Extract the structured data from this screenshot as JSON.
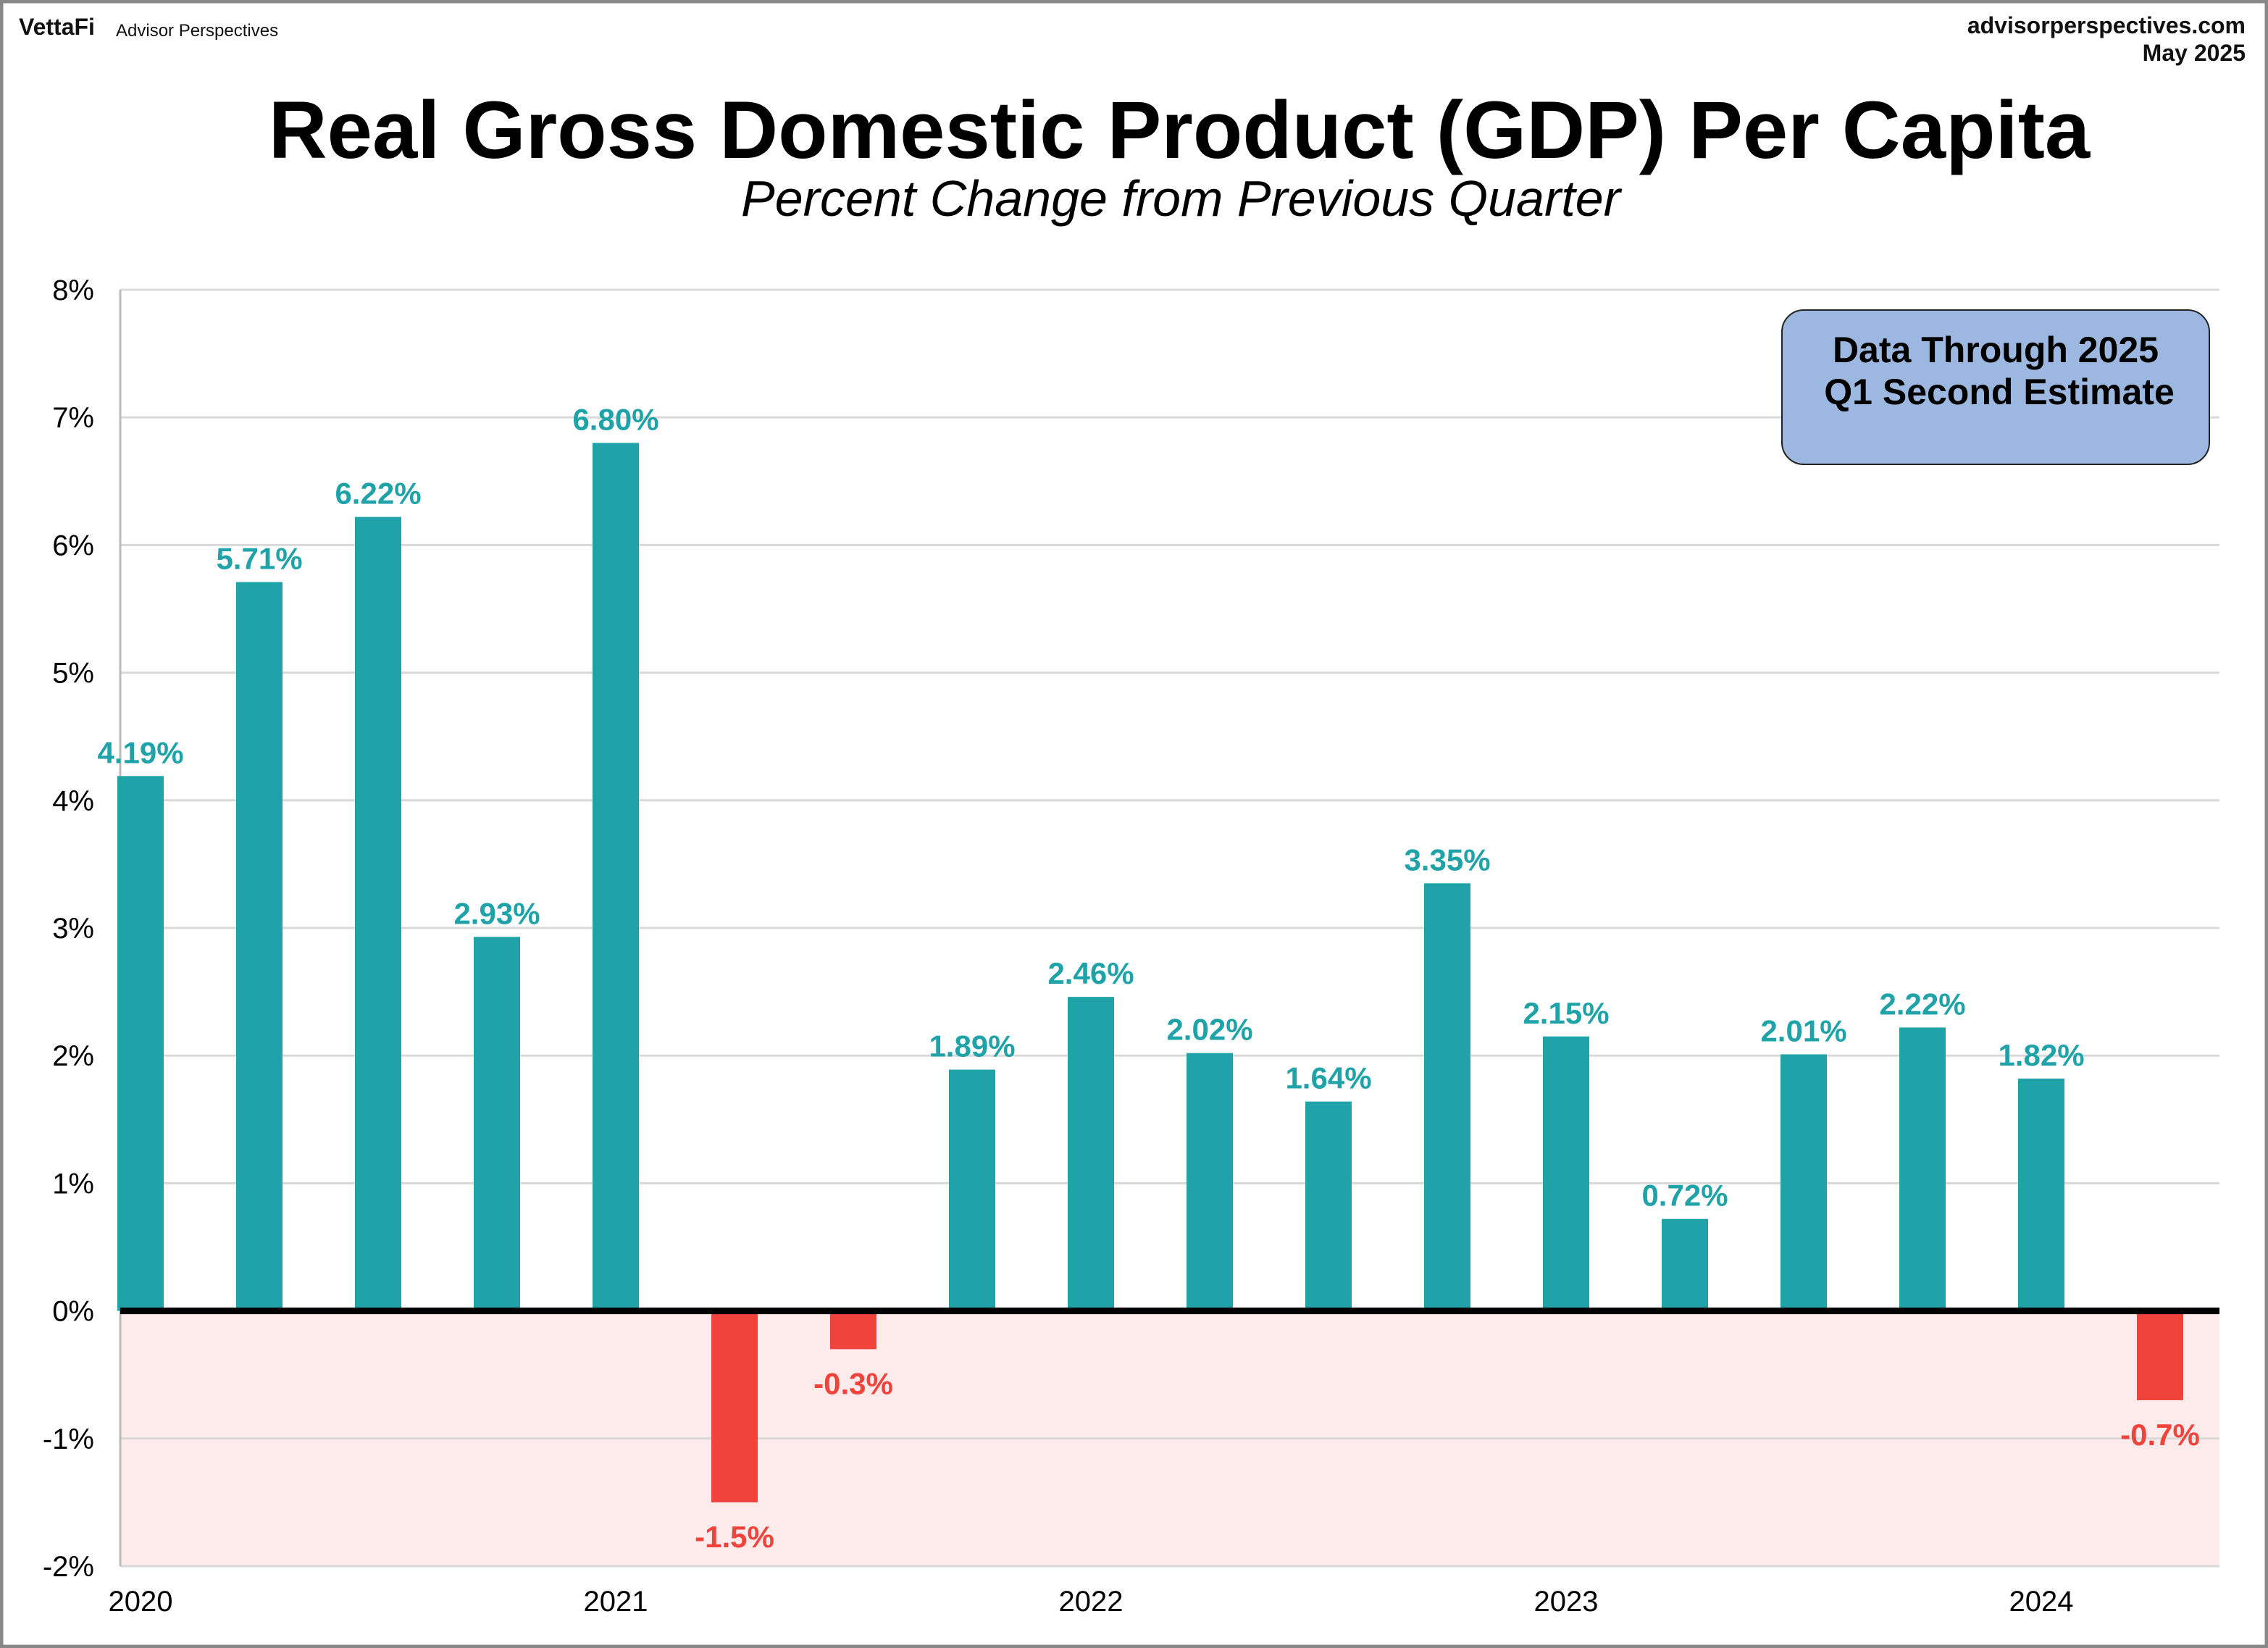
{
  "header": {
    "logo_text": "VettaFi",
    "brand": "Advisor Perspectives",
    "site": "advisorperspectives.com",
    "date": "May 2025"
  },
  "colors": {
    "positive": "#1fa3a8",
    "negative": "#f0433b",
    "negative_region": "#fdeaea",
    "grid": "#d9d9d9",
    "note_box": "#9db8e0"
  },
  "note": {
    "line1": "Data Through 2025",
    "line2": "Q1 Second Estimate"
  },
  "chart_data": {
    "type": "bar",
    "title": "Real Gross Domestic Product (GDP) Per Capita",
    "subtitle": "Percent Change from Previous Quarter",
    "xlabel": "",
    "ylabel": "",
    "ylim": [
      -2,
      8
    ],
    "y_ticks": [
      "8%",
      "7%",
      "6%",
      "5%",
      "4%",
      "3%",
      "2%",
      "1%",
      "0%",
      "-1%",
      "-2%"
    ],
    "x_ticks": [
      {
        "label": "2020",
        "bar_index": 0
      },
      {
        "label": "2021",
        "bar_index": 4
      },
      {
        "label": "2022",
        "bar_index": 8
      },
      {
        "label": "2023",
        "bar_index": 12
      },
      {
        "label": "2024",
        "bar_index": 16
      }
    ],
    "grid": true,
    "values": [
      4.19,
      5.71,
      6.22,
      2.93,
      6.8,
      -1.5,
      -0.3,
      1.89,
      2.46,
      2.02,
      1.64,
      3.35,
      2.15,
      0.72,
      2.01,
      2.22,
      1.82,
      -0.7
    ],
    "labels": [
      "4.19%",
      "5.71%",
      "6.22%",
      "2.93%",
      "6.80%",
      "-1.5%",
      "-0.3%",
      "1.89%",
      "2.46%",
      "2.02%",
      "1.64%",
      "3.35%",
      "2.15%",
      "0.72%",
      "2.01%",
      "2.22%",
      "1.82%",
      "-0.7%"
    ]
  }
}
